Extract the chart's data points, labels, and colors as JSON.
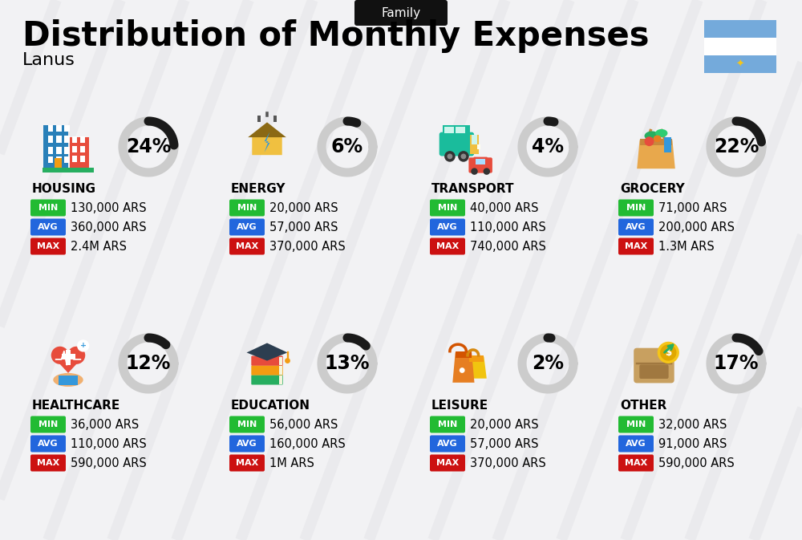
{
  "title": "Distribution of Monthly Expenses",
  "subtitle": "Family",
  "location": "Lanus",
  "background_color": "#f2f2f4",
  "categories": [
    {
      "name": "HOUSING",
      "pct": 24,
      "min": "130,000 ARS",
      "avg": "360,000 ARS",
      "max": "2.4M ARS",
      "col": 0,
      "row": 0
    },
    {
      "name": "ENERGY",
      "pct": 6,
      "min": "20,000 ARS",
      "avg": "57,000 ARS",
      "max": "370,000 ARS",
      "col": 1,
      "row": 0
    },
    {
      "name": "TRANSPORT",
      "pct": 4,
      "min": "40,000 ARS",
      "avg": "110,000 ARS",
      "max": "740,000 ARS",
      "col": 2,
      "row": 0
    },
    {
      "name": "GROCERY",
      "pct": 22,
      "min": "71,000 ARS",
      "avg": "200,000 ARS",
      "max": "1.3M ARS",
      "col": 3,
      "row": 0
    },
    {
      "name": "HEALTHCARE",
      "pct": 12,
      "min": "36,000 ARS",
      "avg": "110,000 ARS",
      "max": "590,000 ARS",
      "col": 0,
      "row": 1
    },
    {
      "name": "EDUCATION",
      "pct": 13,
      "min": "56,000 ARS",
      "avg": "160,000 ARS",
      "max": "1M ARS",
      "col": 1,
      "row": 1
    },
    {
      "name": "LEISURE",
      "pct": 2,
      "min": "20,000 ARS",
      "avg": "57,000 ARS",
      "max": "370,000 ARS",
      "col": 2,
      "row": 1
    },
    {
      "name": "OTHER",
      "pct": 17,
      "min": "32,000 ARS",
      "avg": "91,000 ARS",
      "max": "590,000 ARS",
      "col": 3,
      "row": 1
    }
  ],
  "min_color": "#22bb33",
  "avg_color": "#2266dd",
  "max_color": "#cc1111",
  "donut_dark": "#1a1a1a",
  "donut_light": "#cccccc",
  "flag_blue": "#74aadb",
  "flag_sun": "#f5c518",
  "title_fontsize": 30,
  "subtitle_fontsize": 11,
  "pct_fontsize": 17,
  "name_fontsize": 11,
  "value_fontsize": 10.5
}
